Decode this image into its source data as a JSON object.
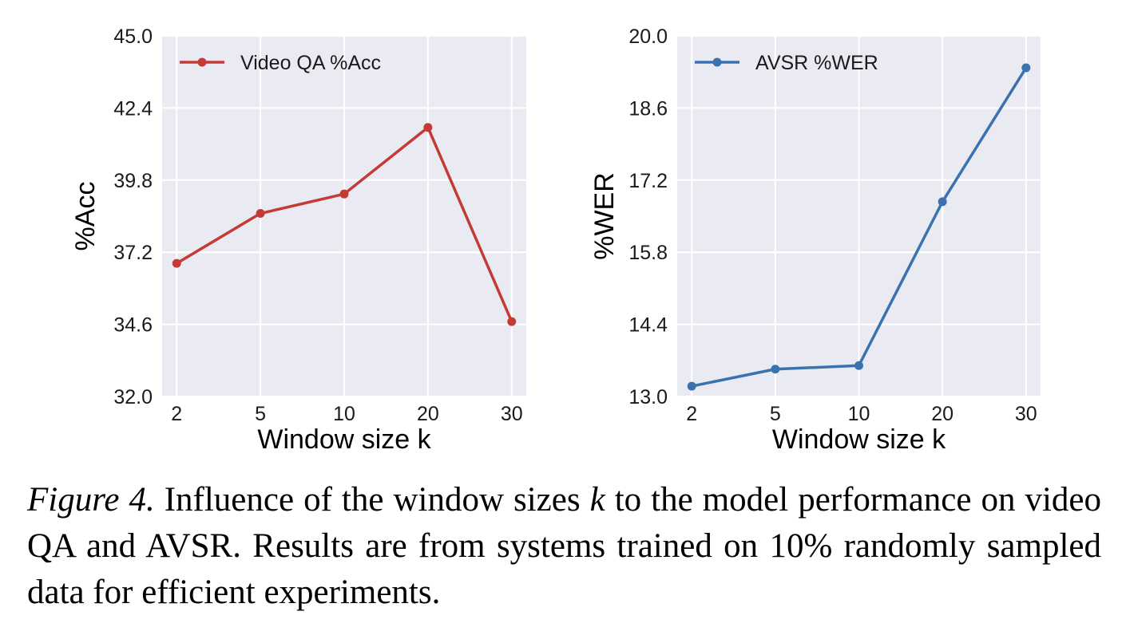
{
  "chart_data": [
    {
      "type": "line",
      "categories": [
        "2",
        "5",
        "10",
        "20",
        "30"
      ],
      "series": [
        {
          "name": "Video QA %Acc",
          "values": [
            36.8,
            38.6,
            39.3,
            41.7,
            34.7
          ],
          "color": "#c33b34",
          "marker": "circle"
        }
      ],
      "xlabel": "Window size k",
      "ylabel": "%Acc",
      "ylim": [
        32.0,
        45.0
      ],
      "yticks": [
        "32.0",
        "34.6",
        "37.2",
        "39.8",
        "42.4",
        "45.0"
      ],
      "grid": true,
      "legend": "top-left",
      "background": "#eaeaf2"
    },
    {
      "type": "line",
      "categories": [
        "2",
        "5",
        "10",
        "20",
        "30"
      ],
      "series": [
        {
          "name": "AVSR %WER",
          "values": [
            13.2,
            13.53,
            13.6,
            16.78,
            19.38
          ],
          "color": "#3a72b0",
          "marker": "circle"
        }
      ],
      "xlabel": "Window size k",
      "ylabel": "%WER",
      "ylim": [
        13.0,
        20.0
      ],
      "yticks": [
        "13.0",
        "14.4",
        "15.8",
        "17.2",
        "18.6",
        "20.0"
      ],
      "grid": true,
      "legend": "top-left",
      "background": "#eaeaf2"
    }
  ],
  "caption": {
    "label": "Figure 4.",
    "text_before_k": "Influence of the window sizes",
    "k": "k",
    "text_after_k": "to the model performance on video QA and AVSR. Results are from systems trained on 10% randomly sampled data for efficient experiments."
  }
}
